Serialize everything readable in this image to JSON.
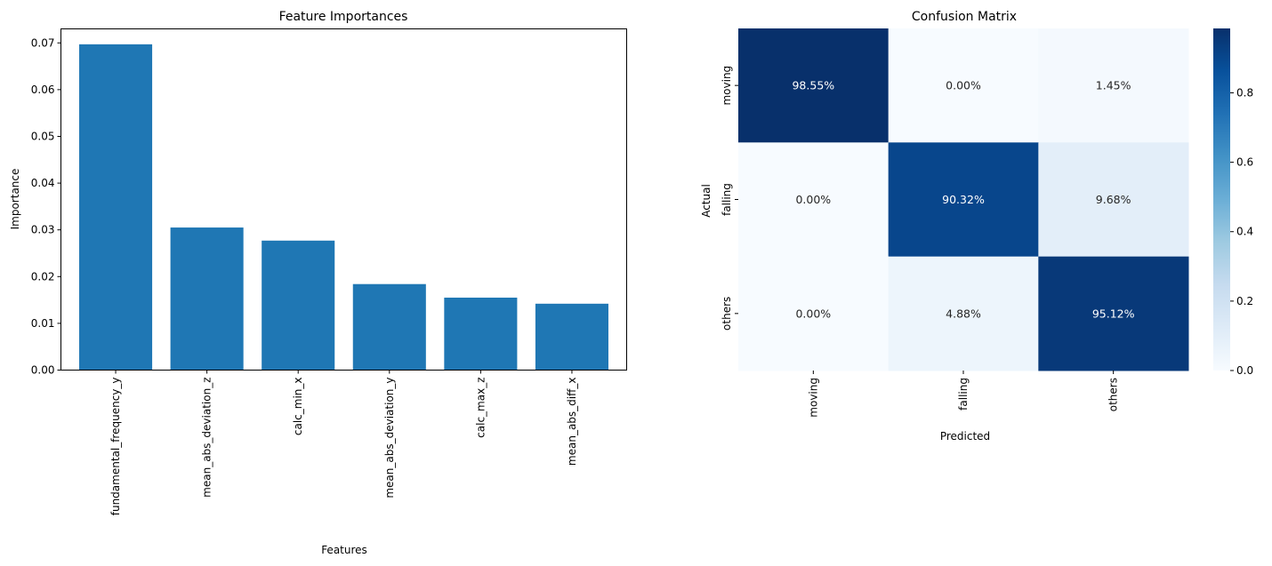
{
  "chart_data": [
    {
      "type": "bar",
      "title": "Feature Importances",
      "xlabel": "Features",
      "ylabel": "Importance",
      "categories": [
        "fundamental_frequency_y",
        "mean_abs_deviation_z",
        "calc_min_x",
        "mean_abs_deviation_y",
        "calc_max_z",
        "mean_abs_diff_x"
      ],
      "values": [
        0.0697,
        0.0305,
        0.0277,
        0.0184,
        0.0155,
        0.0142
      ],
      "ylim": [
        0,
        0.073
      ],
      "yticks": [
        0.0,
        0.01,
        0.02,
        0.03,
        0.04,
        0.05,
        0.06,
        0.07
      ],
      "ytick_labels": [
        "0.00",
        "0.01",
        "0.02",
        "0.03",
        "0.04",
        "0.05",
        "0.06",
        "0.07"
      ],
      "color": "#1f77b4",
      "grid": false
    },
    {
      "type": "heatmap",
      "title": "Confusion Matrix",
      "xlabel": "Predicted",
      "ylabel": "Actual",
      "x_categories": [
        "moving",
        "falling",
        "others"
      ],
      "y_categories": [
        "moving",
        "falling",
        "others"
      ],
      "values": [
        [
          0.9855,
          0.0,
          0.0145
        ],
        [
          0.0,
          0.9032,
          0.0968
        ],
        [
          0.0,
          0.0488,
          0.9512
        ]
      ],
      "annotations": [
        [
          "98.55%",
          "0.00%",
          "1.45%"
        ],
        [
          "0.00%",
          "90.32%",
          "9.68%"
        ],
        [
          "0.00%",
          "4.88%",
          "95.12%"
        ]
      ],
      "colormap": "Blues",
      "colorbar_range": [
        0,
        0.9855
      ],
      "colorbar_ticks": [
        0.0,
        0.2,
        0.4,
        0.6,
        0.8
      ],
      "colorbar_tick_labels": [
        "0.0",
        "0.2",
        "0.4",
        "0.6",
        "0.8"
      ]
    }
  ]
}
